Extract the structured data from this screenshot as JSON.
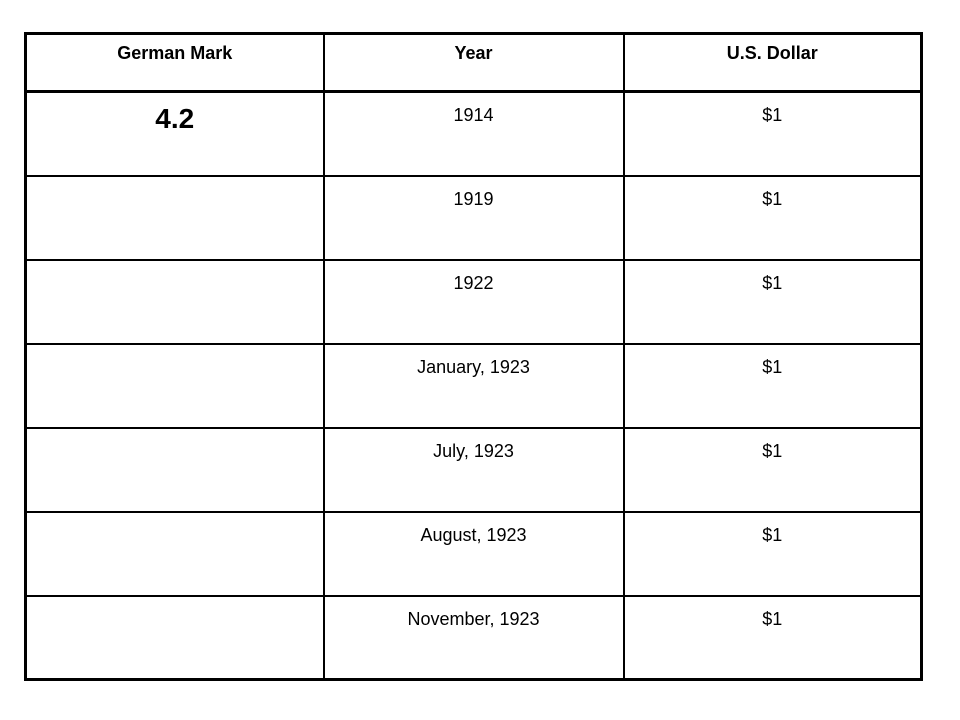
{
  "table": {
    "headers": {
      "mark": "German Mark",
      "year": "Year",
      "dollar": "U.S. Dollar"
    },
    "rows": [
      {
        "mark": "4.2",
        "year": "1914",
        "dollar": "$1"
      },
      {
        "mark": "",
        "year": "1919",
        "dollar": "$1"
      },
      {
        "mark": "",
        "year": "1922",
        "dollar": "$1"
      },
      {
        "mark": "",
        "year": "January, 1923",
        "dollar": "$1"
      },
      {
        "mark": "",
        "year": "July, 1923",
        "dollar": "$1"
      },
      {
        "mark": "",
        "year": "August, 1923",
        "dollar": "$1"
      },
      {
        "mark": "",
        "year": "November, 1923",
        "dollar": "$1"
      }
    ]
  }
}
